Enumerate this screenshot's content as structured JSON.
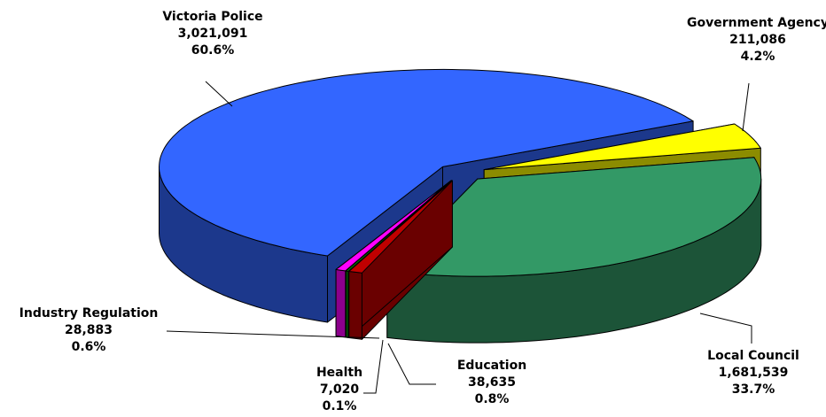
{
  "chart_data": {
    "type": "pie3d",
    "categories": [
      "Government Agency",
      "Local Council",
      "Education",
      "Health",
      "Industry Regulation",
      "Victoria Police"
    ],
    "values": [
      211086,
      1681539,
      38635,
      7020,
      28883,
      3021091
    ],
    "value_labels": [
      "211,086",
      "1,681,539",
      "38,635",
      "7,020",
      "28,883",
      "3,021,091"
    ],
    "percent_labels": [
      "4.2%",
      "33.7%",
      "0.8%",
      "0.1%",
      "0.6%",
      "60.6%"
    ],
    "colors": [
      "#ffff00",
      "#339966",
      "#c00000",
      "#00a000",
      "#ff00ff",
      "#3366ff"
    ]
  }
}
